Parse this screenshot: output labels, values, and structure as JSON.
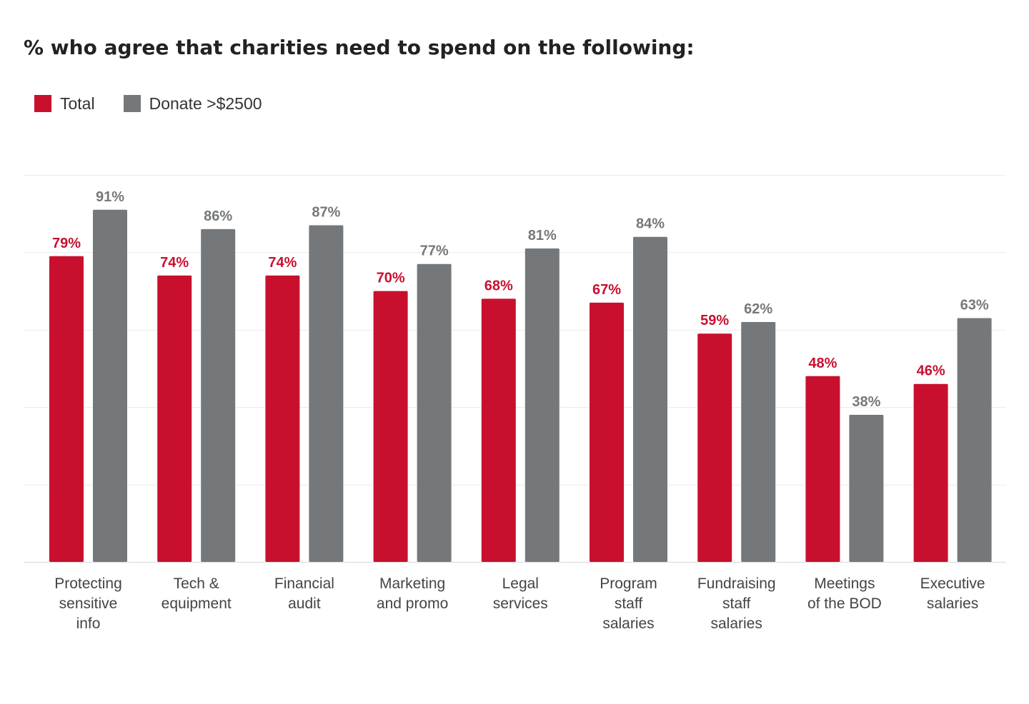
{
  "colors": {
    "total": "#c8102e",
    "donate": "#75787b",
    "grid": "#ececec"
  },
  "chart_data": {
    "type": "bar",
    "title": "% who agree that charities need to spend on the following:",
    "legend_position": "top-left",
    "grid": true,
    "ylim": [
      0,
      110
    ],
    "categories": [
      [
        "Protecting",
        "sensitive",
        "info"
      ],
      [
        "Tech &",
        "equipment"
      ],
      [
        "Financial",
        "audit"
      ],
      [
        "Marketing",
        "and promo"
      ],
      [
        "Legal",
        "services"
      ],
      [
        "Program",
        "staff",
        "salaries"
      ],
      [
        "Fundraising",
        "staff",
        "salaries"
      ],
      [
        "Meetings",
        "of the BOD"
      ],
      [
        "Executive",
        "salaries"
      ]
    ],
    "series": [
      {
        "name": "Total",
        "values": [
          79,
          74,
          74,
          70,
          68,
          67,
          59,
          48,
          46
        ],
        "labels": [
          "79%",
          "74%",
          "74%",
          "70%",
          "68%",
          "67%",
          "59%",
          "48%",
          "46%"
        ]
      },
      {
        "name": "Donate >$2500",
        "values": [
          91,
          86,
          87,
          77,
          81,
          84,
          62,
          38,
          63
        ],
        "labels": [
          "91%",
          "86%",
          "87%",
          "77%",
          "81%",
          "84%",
          "62%",
          "38%",
          "63%"
        ]
      }
    ]
  }
}
